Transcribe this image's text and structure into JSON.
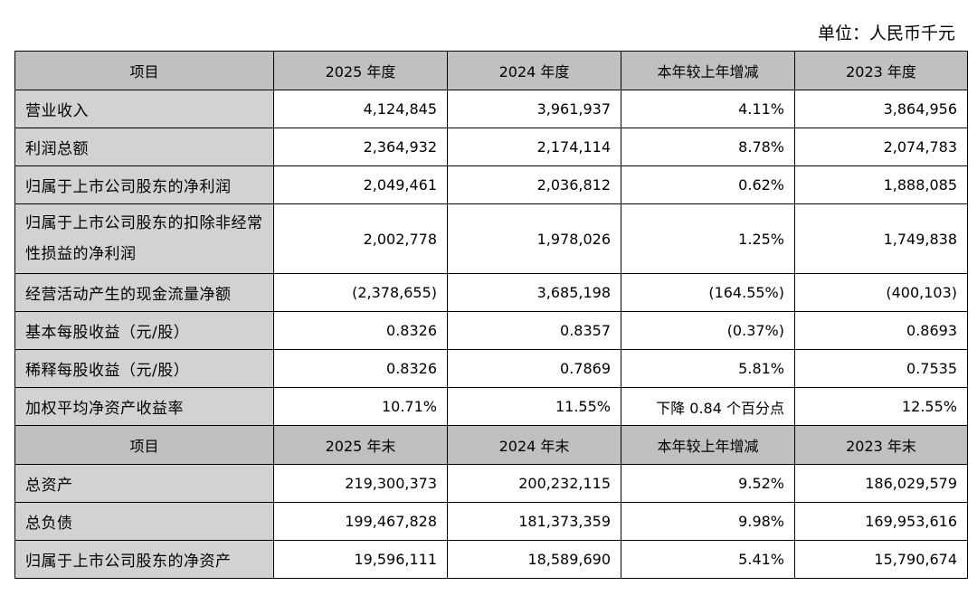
{
  "unit_label": "单位：人民币千元",
  "columns_period": [
    "项目",
    "2025 年度",
    "2024 年度",
    "本年较上年增减",
    "2023 年度"
  ],
  "rows_period": [
    {
      "label": "营业收入",
      "v2025": "4,124,845",
      "v2024": "3,961,937",
      "change": "4.11%",
      "v2023": "3,864,956"
    },
    {
      "label": "利润总额",
      "v2025": "2,364,932",
      "v2024": "2,174,114",
      "change": "8.78%",
      "v2023": "2,074,783"
    },
    {
      "label": "归属于上市公司股东的净利润",
      "v2025": "2,049,461",
      "v2024": "2,036,812",
      "change": "0.62%",
      "v2023": "1,888,085"
    },
    {
      "label": "归属于上市公司股东的扣除非经常性损益的净利润",
      "v2025": "2,002,778",
      "v2024": "1,978,026",
      "change": "1.25%",
      "v2023": "1,749,838"
    },
    {
      "label": "经营活动产生的现金流量净额",
      "v2025": "(2,378,655)",
      "v2024": "3,685,198",
      "change": "(164.55%)",
      "v2023": "(400,103)"
    },
    {
      "label": "基本每股收益（元/股）",
      "v2025": "0.8326",
      "v2024": "0.8357",
      "change": "(0.37%)",
      "v2023": "0.8693"
    },
    {
      "label": "稀释每股收益（元/股）",
      "v2025": "0.8326",
      "v2024": "0.7869",
      "change": "5.81%",
      "v2023": "0.7535"
    },
    {
      "label": "加权平均净资产收益率",
      "v2025": "10.71%",
      "v2024": "11.55%",
      "change": "下降 0.84 个百分点",
      "v2023": "12.55%"
    }
  ],
  "columns_end": [
    "项目",
    "2025 年末",
    "2024 年末",
    "本年较上年增减",
    "2023 年末"
  ],
  "rows_end": [
    {
      "label": "总资产",
      "v2025": "219,300,373",
      "v2024": "200,232,115",
      "change": "9.52%",
      "v2023": "186,029,579"
    },
    {
      "label": "总负债",
      "v2025": "199,467,828",
      "v2024": "181,373,359",
      "change": "9.98%",
      "v2023": "169,953,616"
    },
    {
      "label": "归属于上市公司股东的净资产",
      "v2025": "19,596,111",
      "v2024": "18,589,690",
      "change": "5.41%",
      "v2023": "15,790,674"
    }
  ]
}
